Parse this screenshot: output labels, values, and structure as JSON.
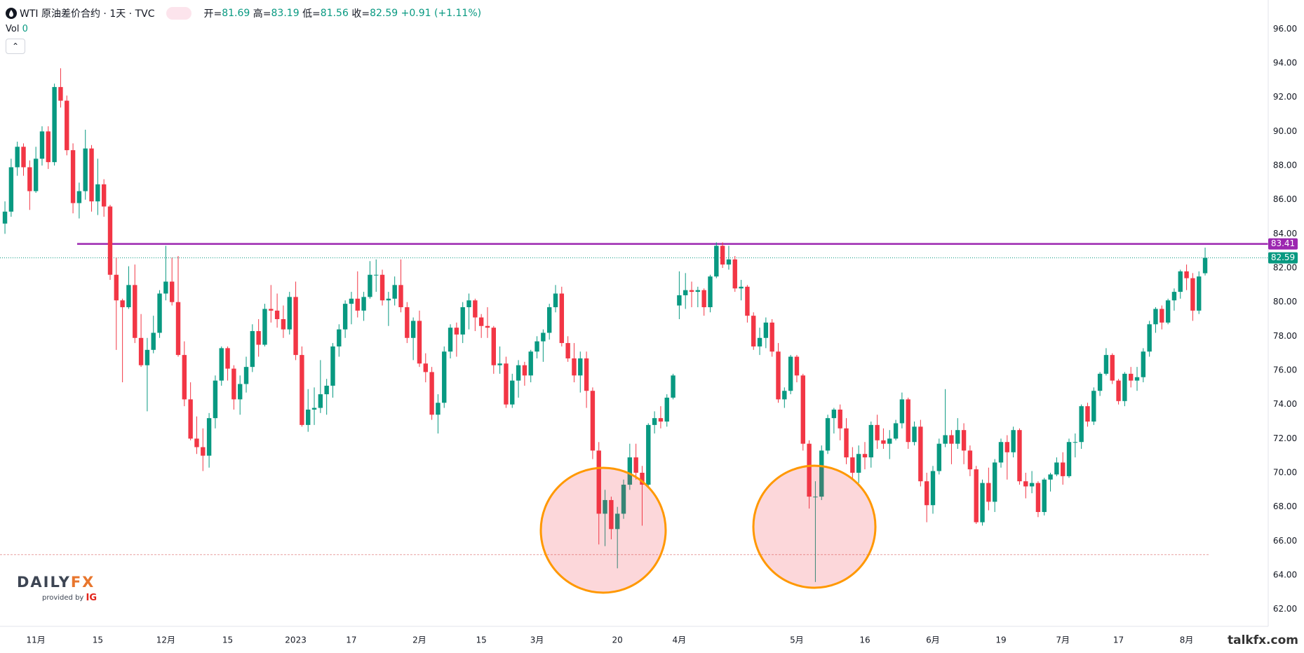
{
  "chart_data": {
    "type": "candlestick",
    "title": "WTI 原油差价合约 · 1天 · TVC",
    "ohlc_labels": [
      "开=",
      "高=",
      "低=",
      "收="
    ],
    "change": "+0.91 (+1.11%)",
    "volume_label": "Vol",
    "volume_value": 0,
    "up_color": "#089981",
    "down_color": "#f23645",
    "xlim": [
      -0.8,
      204.2
    ],
    "ylim": [
      61.0,
      97.7
    ],
    "yticks": [
      {
        "value": 62,
        "label": "62.00"
      },
      {
        "value": 64,
        "label": "64.00"
      },
      {
        "value": 66,
        "label": "66.00"
      },
      {
        "value": 68,
        "label": "68.00"
      },
      {
        "value": 70,
        "label": "70.00"
      },
      {
        "value": 72,
        "label": "72.00"
      },
      {
        "value": 74,
        "label": "74.00"
      },
      {
        "value": 76,
        "label": "76.00"
      },
      {
        "value": 78,
        "label": "78.00"
      },
      {
        "value": 80,
        "label": "80.00"
      },
      {
        "value": 82,
        "label": "82.00"
      },
      {
        "value": 84,
        "label": "84.00"
      },
      {
        "value": 86,
        "label": "86.00"
      },
      {
        "value": 88,
        "label": "88.00"
      },
      {
        "value": 90,
        "label": "90.00"
      },
      {
        "value": 92,
        "label": "92.00"
      },
      {
        "value": 94,
        "label": "94.00"
      },
      {
        "value": 96,
        "label": "96.00"
      }
    ],
    "xticks": [
      {
        "value": 5,
        "label": "11月"
      },
      {
        "value": 15,
        "label": "15"
      },
      {
        "value": 26,
        "label": "12月"
      },
      {
        "value": 36,
        "label": "15"
      },
      {
        "value": 47,
        "label": "2023"
      },
      {
        "value": 56,
        "label": "17"
      },
      {
        "value": 67,
        "label": "2月"
      },
      {
        "value": 77,
        "label": "15"
      },
      {
        "value": 86,
        "label": "3月"
      },
      {
        "value": 99,
        "label": "20"
      },
      {
        "value": 109,
        "label": "4月"
      },
      {
        "value": 128,
        "label": "5月"
      },
      {
        "value": 139,
        "label": "16"
      },
      {
        "value": 150,
        "label": "6月"
      },
      {
        "value": 161,
        "label": "19"
      },
      {
        "value": 171,
        "label": "7月"
      },
      {
        "value": 180,
        "label": "17"
      },
      {
        "value": 191,
        "label": "8月"
      }
    ],
    "grid": true,
    "resistance": {
      "value": 83.41,
      "color": "#9c27b0"
    },
    "support": {
      "value": 65.2
    },
    "candles": [
      [
        84.6,
        85.9,
        84.0,
        85.3
      ],
      [
        85.3,
        88.4,
        85.0,
        87.9
      ],
      [
        87.9,
        89.4,
        87.4,
        89.1
      ],
      [
        89.1,
        89.3,
        87.4,
        87.9
      ],
      [
        87.9,
        88.3,
        85.4,
        86.5
      ],
      [
        86.5,
        89.1,
        86.4,
        88.4
      ],
      [
        88.4,
        90.3,
        88.0,
        90.0
      ],
      [
        90.0,
        90.3,
        87.8,
        88.2
      ],
      [
        88.2,
        92.8,
        88.0,
        92.6
      ],
      [
        92.6,
        93.7,
        91.4,
        91.8
      ],
      [
        91.8,
        92.1,
        88.6,
        88.9
      ],
      [
        88.9,
        89.3,
        85.2,
        85.8
      ],
      [
        85.8,
        87.0,
        84.9,
        86.5
      ],
      [
        86.5,
        90.1,
        86.0,
        89.0
      ],
      [
        89.0,
        89.2,
        85.3,
        85.9
      ],
      [
        85.9,
        88.4,
        85.1,
        86.9
      ],
      [
        86.9,
        87.2,
        85.0,
        85.6
      ],
      [
        85.6,
        85.7,
        81.3,
        81.6
      ],
      [
        81.6,
        82.6,
        77.2,
        80.1
      ],
      [
        80.1,
        80.2,
        75.3,
        79.7
      ],
      [
        79.7,
        82.1,
        79.6,
        81.0
      ],
      [
        81.0,
        82.2,
        77.6,
        77.9
      ],
      [
        77.9,
        79.3,
        76.2,
        76.3
      ],
      [
        76.3,
        77.9,
        73.6,
        77.2
      ],
      [
        77.2,
        79.2,
        77.0,
        78.2
      ],
      [
        78.2,
        80.7,
        77.9,
        80.5
      ],
      [
        80.5,
        83.3,
        80.1,
        81.2
      ],
      [
        81.2,
        82.6,
        79.8,
        80.0
      ],
      [
        80.0,
        82.7,
        76.8,
        76.9
      ],
      [
        76.9,
        77.7,
        73.9,
        74.3
      ],
      [
        74.3,
        75.3,
        71.9,
        72.0
      ],
      [
        72.0,
        73.3,
        71.1,
        71.5
      ],
      [
        71.5,
        72.6,
        70.1,
        71.0
      ],
      [
        71.0,
        73.5,
        70.3,
        73.2
      ],
      [
        73.2,
        75.7,
        72.6,
        75.4
      ],
      [
        75.4,
        77.4,
        75.1,
        77.3
      ],
      [
        77.3,
        77.4,
        75.4,
        76.1
      ],
      [
        76.1,
        76.3,
        73.7,
        74.3
      ],
      [
        74.3,
        75.7,
        73.4,
        75.2
      ],
      [
        75.2,
        76.8,
        74.7,
        76.2
      ],
      [
        76.2,
        78.7,
        75.9,
        78.3
      ],
      [
        78.3,
        79.0,
        76.8,
        77.5
      ],
      [
        77.5,
        79.9,
        77.4,
        79.6
      ],
      [
        79.6,
        81.0,
        78.8,
        79.5
      ],
      [
        79.5,
        80.5,
        78.5,
        79.0
      ],
      [
        79.0,
        79.8,
        77.9,
        78.4
      ],
      [
        78.4,
        80.6,
        78.1,
        80.3
      ],
      [
        80.3,
        81.2,
        76.6,
        76.9
      ],
      [
        76.9,
        77.4,
        72.7,
        72.8
      ],
      [
        72.8,
        74.9,
        72.4,
        73.7
      ],
      [
        73.7,
        75.0,
        72.8,
        73.8
      ],
      [
        73.8,
        76.6,
        73.5,
        74.6
      ],
      [
        74.6,
        75.5,
        73.4,
        75.1
      ],
      [
        75.1,
        77.6,
        74.4,
        77.4
      ],
      [
        77.4,
        78.7,
        76.8,
        78.4
      ],
      [
        78.4,
        80.1,
        77.9,
        79.9
      ],
      [
        79.9,
        80.6,
        78.7,
        80.2
      ],
      [
        80.2,
        81.8,
        79.1,
        79.5
      ],
      [
        79.5,
        80.6,
        78.9,
        80.3
      ],
      [
        80.3,
        82.4,
        80.2,
        81.6
      ],
      [
        81.6,
        82.5,
        80.6,
        81.6
      ],
      [
        81.6,
        81.9,
        79.8,
        80.1
      ],
      [
        80.1,
        80.6,
        78.6,
        80.2
      ],
      [
        80.2,
        81.5,
        79.8,
        81.0
      ],
      [
        81.0,
        82.5,
        79.4,
        79.7
      ],
      [
        79.7,
        80.0,
        77.6,
        77.9
      ],
      [
        77.9,
        79.1,
        76.6,
        78.9
      ],
      [
        78.9,
        79.5,
        76.2,
        76.4
      ],
      [
        76.4,
        77.0,
        75.3,
        75.9
      ],
      [
        75.9,
        76.2,
        73.1,
        73.4
      ],
      [
        73.4,
        74.6,
        72.3,
        74.1
      ],
      [
        74.1,
        77.4,
        73.8,
        77.1
      ],
      [
        77.1,
        78.7,
        76.7,
        78.5
      ],
      [
        78.5,
        78.8,
        76.8,
        78.1
      ],
      [
        78.1,
        80.0,
        77.6,
        79.7
      ],
      [
        79.7,
        80.5,
        78.4,
        80.1
      ],
      [
        80.1,
        80.2,
        78.3,
        79.1
      ],
      [
        79.1,
        79.3,
        77.9,
        78.6
      ],
      [
        78.6,
        79.7,
        77.9,
        78.5
      ],
      [
        78.5,
        78.6,
        75.8,
        76.3
      ],
      [
        76.3,
        77.4,
        75.8,
        76.4
      ],
      [
        76.4,
        76.8,
        73.8,
        74.0
      ],
      [
        74.0,
        75.8,
        73.8,
        75.4
      ],
      [
        75.4,
        76.6,
        74.4,
        76.3
      ],
      [
        76.3,
        76.5,
        75.1,
        75.7
      ],
      [
        75.7,
        77.2,
        75.3,
        77.1
      ],
      [
        77.1,
        78.0,
        76.7,
        77.7
      ],
      [
        77.7,
        78.4,
        76.5,
        78.2
      ],
      [
        78.2,
        79.9,
        77.8,
        79.7
      ],
      [
        79.7,
        81.0,
        79.4,
        80.5
      ],
      [
        80.5,
        80.9,
        77.4,
        77.6
      ],
      [
        77.6,
        78.0,
        76.5,
        76.7
      ],
      [
        76.7,
        77.6,
        75.3,
        75.7
      ],
      [
        75.7,
        77.1,
        74.7,
        76.7
      ],
      [
        76.7,
        77.1,
        73.8,
        74.8
      ],
      [
        74.8,
        75.0,
        70.8,
        71.3
      ],
      [
        71.3,
        71.8,
        65.8,
        67.6
      ],
      [
        67.6,
        69.0,
        65.7,
        68.4
      ],
      [
        68.4,
        68.6,
        66.1,
        66.7
      ],
      [
        66.7,
        68.0,
        64.4,
        67.6
      ],
      [
        67.6,
        69.6,
        67.3,
        69.3
      ],
      [
        69.3,
        71.7,
        69.0,
        70.9
      ],
      [
        70.9,
        71.7,
        69.6,
        70.0
      ],
      [
        70.0,
        70.4,
        66.9,
        69.3
      ],
      [
        69.3,
        72.9,
        69.2,
        72.8
      ],
      [
        72.8,
        73.6,
        72.3,
        73.2
      ],
      [
        73.2,
        73.9,
        72.6,
        73.0
      ],
      [
        73.0,
        74.6,
        72.7,
        74.4
      ],
      [
        74.4,
        75.8,
        74.3,
        75.7
      ],
      [
        79.8,
        81.8,
        79.0,
        80.4
      ],
      [
        80.4,
        81.7,
        79.6,
        80.7
      ],
      [
        80.7,
        81.2,
        79.7,
        80.6
      ],
      [
        80.6,
        80.9,
        79.7,
        80.7
      ],
      [
        80.7,
        80.8,
        79.2,
        79.7
      ],
      [
        79.7,
        81.6,
        79.4,
        81.5
      ],
      [
        81.5,
        83.5,
        81.4,
        83.3
      ],
      [
        83.3,
        83.5,
        82.0,
        82.2
      ],
      [
        82.2,
        83.3,
        81.9,
        82.5
      ],
      [
        82.5,
        82.7,
        80.6,
        80.8
      ],
      [
        80.8,
        81.3,
        80.1,
        80.9
      ],
      [
        80.9,
        81.0,
        78.8,
        79.2
      ],
      [
        79.2,
        79.4,
        77.2,
        77.4
      ],
      [
        77.4,
        78.5,
        76.9,
        77.9
      ],
      [
        77.9,
        79.1,
        77.3,
        78.8
      ],
      [
        78.8,
        79.0,
        76.8,
        77.1
      ],
      [
        77.1,
        77.6,
        74.1,
        74.3
      ],
      [
        74.3,
        75.0,
        73.8,
        74.8
      ],
      [
        74.8,
        76.9,
        74.6,
        76.8
      ],
      [
        76.8,
        76.9,
        75.3,
        75.7
      ],
      [
        75.7,
        75.8,
        71.3,
        71.7
      ],
      [
        71.7,
        71.9,
        67.9,
        68.6
      ],
      [
        68.6,
        69.5,
        63.6,
        68.6
      ],
      [
        68.6,
        71.6,
        68.4,
        71.3
      ],
      [
        71.3,
        73.4,
        71.1,
        73.2
      ],
      [
        73.2,
        73.8,
        72.3,
        73.7
      ],
      [
        73.7,
        74.0,
        71.9,
        72.6
      ],
      [
        72.6,
        73.2,
        70.5,
        70.9
      ],
      [
        70.9,
        71.5,
        69.6,
        70.0
      ],
      [
        70.0,
        71.6,
        69.4,
        71.1
      ],
      [
        71.1,
        71.8,
        70.2,
        70.9
      ],
      [
        70.9,
        73.0,
        70.3,
        72.8
      ],
      [
        72.8,
        73.4,
        71.4,
        71.9
      ],
      [
        71.9,
        72.6,
        71.4,
        71.7
      ],
      [
        71.7,
        72.5,
        70.8,
        72.0
      ],
      [
        72.0,
        73.1,
        71.9,
        72.9
      ],
      [
        72.9,
        74.7,
        72.6,
        74.3
      ],
      [
        74.3,
        74.4,
        71.4,
        71.8
      ],
      [
        71.8,
        73.0,
        71.6,
        72.7
      ],
      [
        72.7,
        73.1,
        69.2,
        69.5
      ],
      [
        69.5,
        70.0,
        67.1,
        68.1
      ],
      [
        68.1,
        70.4,
        67.6,
        70.1
      ],
      [
        70.1,
        72.0,
        69.9,
        71.7
      ],
      [
        71.7,
        74.9,
        71.5,
        72.2
      ],
      [
        72.2,
        72.5,
        70.5,
        71.7
      ],
      [
        71.7,
        73.2,
        71.4,
        72.5
      ],
      [
        72.5,
        72.9,
        70.5,
        71.3
      ],
      [
        71.3,
        71.6,
        69.8,
        70.2
      ],
      [
        70.2,
        70.4,
        67.0,
        67.1
      ],
      [
        67.1,
        69.6,
        66.9,
        69.4
      ],
      [
        69.4,
        70.3,
        67.8,
        68.3
      ],
      [
        68.3,
        70.8,
        67.7,
        70.6
      ],
      [
        70.6,
        72.0,
        70.3,
        71.8
      ],
      [
        71.8,
        72.2,
        69.6,
        71.2
      ],
      [
        71.2,
        72.7,
        70.9,
        72.5
      ],
      [
        72.5,
        72.6,
        69.3,
        69.5
      ],
      [
        69.5,
        70.0,
        68.5,
        69.2
      ],
      [
        69.2,
        70.1,
        68.8,
        69.4
      ],
      [
        69.4,
        69.5,
        67.4,
        67.7
      ],
      [
        67.7,
        69.7,
        67.5,
        69.6
      ],
      [
        69.6,
        70.0,
        68.9,
        69.9
      ],
      [
        69.9,
        70.9,
        69.8,
        70.6
      ],
      [
        70.6,
        71.2,
        69.3,
        69.8
      ],
      [
        69.8,
        72.0,
        69.7,
        71.8
      ],
      [
        71.8,
        72.3,
        70.9,
        71.8
      ],
      [
        71.8,
        74.0,
        71.4,
        73.9
      ],
      [
        73.9,
        74.1,
        72.7,
        73.0
      ],
      [
        73.0,
        75.0,
        72.8,
        74.8
      ],
      [
        74.8,
        75.9,
        74.5,
        75.8
      ],
      [
        75.8,
        77.3,
        75.7,
        76.9
      ],
      [
        76.9,
        77.0,
        75.2,
        75.4
      ],
      [
        75.4,
        75.5,
        74.0,
        74.2
      ],
      [
        74.2,
        75.9,
        73.9,
        75.8
      ],
      [
        75.8,
        76.2,
        75.0,
        75.4
      ],
      [
        75.4,
        76.2,
        74.8,
        75.6
      ],
      [
        75.6,
        77.3,
        75.3,
        77.1
      ],
      [
        77.1,
        78.9,
        76.8,
        78.7
      ],
      [
        78.7,
        79.7,
        78.2,
        79.6
      ],
      [
        79.6,
        79.8,
        78.4,
        78.8
      ],
      [
        78.8,
        80.2,
        78.7,
        80.1
      ],
      [
        80.1,
        80.8,
        79.5,
        80.6
      ],
      [
        80.6,
        81.9,
        80.2,
        81.8
      ],
      [
        81.8,
        82.2,
        80.7,
        81.4
      ],
      [
        81.4,
        81.7,
        78.9,
        79.5
      ],
      [
        79.5,
        81.8,
        79.3,
        81.5
      ],
      [
        81.69,
        83.19,
        81.56,
        82.59
      ]
    ]
  }
}
